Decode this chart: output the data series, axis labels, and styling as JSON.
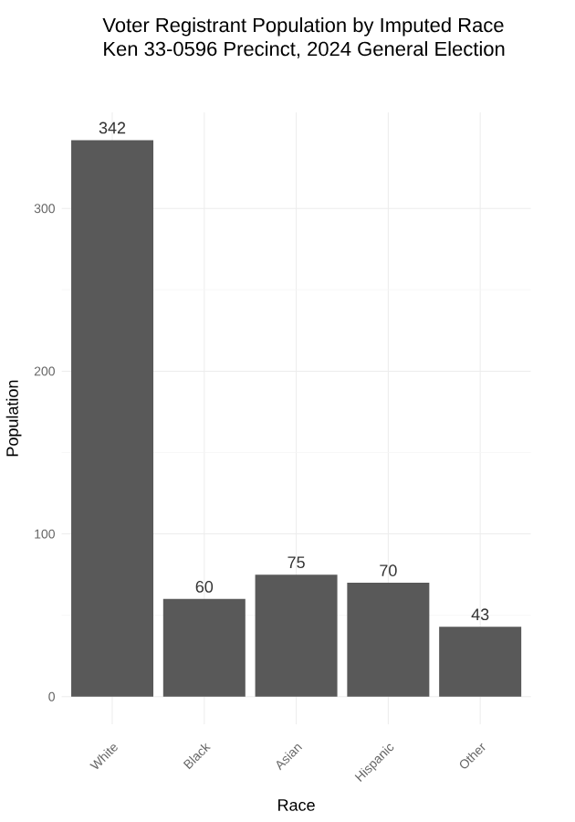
{
  "chart_data": {
    "type": "bar",
    "title": "Voter Registrant Population by Imputed Race",
    "subtitle": "Ken 33-0596 Precinct,  2024 General Election",
    "xlabel": "Race",
    "ylabel": "Population",
    "categories": [
      "White",
      "Black",
      "Asian",
      "Hispanic",
      "Other"
    ],
    "values": [
      342,
      60,
      75,
      70,
      43
    ],
    "color": "#595959",
    "data_labels": true,
    "ylim": [
      -17,
      359
    ],
    "yticks": [
      0,
      100,
      200,
      300
    ],
    "grid": true
  }
}
